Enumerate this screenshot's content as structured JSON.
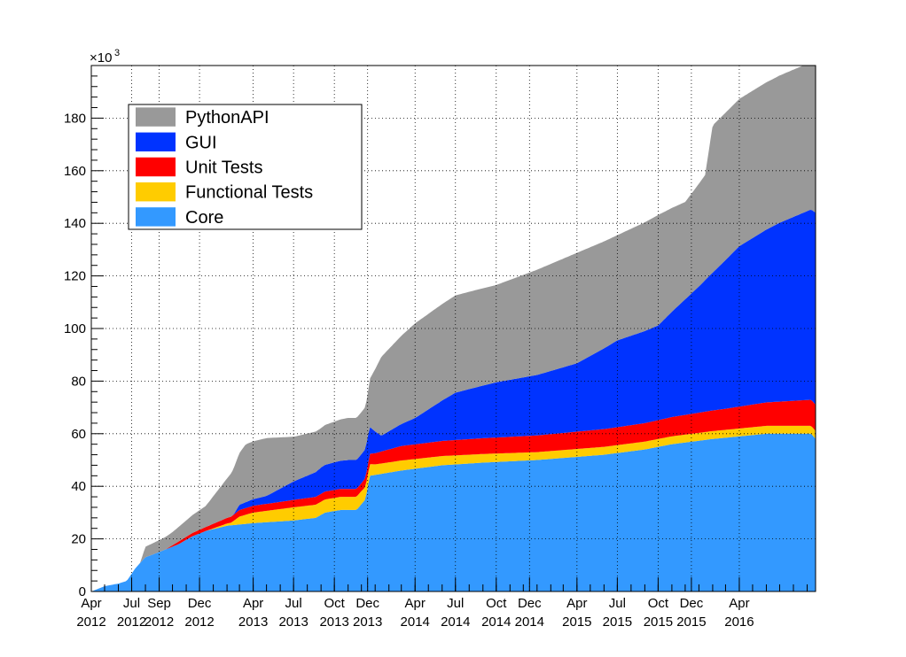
{
  "chart_data": {
    "type": "area",
    "stacked": true,
    "x_axis": {
      "type": "date",
      "ticks": [
        {
          "date": "2012-04-01",
          "l1": "Apr",
          "l2": "2012"
        },
        {
          "date": "2012-07-01",
          "l1": "Jul",
          "l2": "2012"
        },
        {
          "date": "2012-09-01",
          "l1": "Sep",
          "l2": "2012"
        },
        {
          "date": "2012-12-01",
          "l1": "Dec",
          "l2": "2012"
        },
        {
          "date": "2013-04-01",
          "l1": "Apr",
          "l2": "2013"
        },
        {
          "date": "2013-07-01",
          "l1": "Jul",
          "l2": "2013"
        },
        {
          "date": "2013-10-01",
          "l1": "Oct",
          "l2": "2013"
        },
        {
          "date": "2013-12-15",
          "l1": "Dec",
          "l2": "2013"
        },
        {
          "date": "2014-04-01",
          "l1": "Apr",
          "l2": "2014"
        },
        {
          "date": "2014-07-01",
          "l1": "Jul",
          "l2": "2014"
        },
        {
          "date": "2014-10-01",
          "l1": "Oct",
          "l2": "2014"
        },
        {
          "date": "2014-12-15",
          "l1": "Dec",
          "l2": "2014"
        },
        {
          "date": "2015-04-01",
          "l1": "Apr",
          "l2": "2015"
        },
        {
          "date": "2015-07-01",
          "l1": "Jul",
          "l2": "2015"
        },
        {
          "date": "2015-10-01",
          "l1": "Oct",
          "l2": "2015"
        },
        {
          "date": "2015-12-15",
          "l1": "Dec",
          "l2": "2015"
        },
        {
          "date": "2016-04-01",
          "l1": "Apr",
          "l2": "2016"
        }
      ],
      "range": [
        "2012-04-01",
        "2016-09-20"
      ]
    },
    "y_axis": {
      "range": [
        0,
        200000
      ],
      "multiplier_label": "×10",
      "multiplier_exponent": "3",
      "ticks": [
        0,
        20,
        40,
        60,
        80,
        100,
        120,
        140,
        160,
        180
      ]
    },
    "grid": true,
    "legend_position": "top-left",
    "series": [
      {
        "name": "Core",
        "color": "#3399ff",
        "points": [
          [
            "2012-04-01",
            0
          ],
          [
            "2012-05-01",
            2000
          ],
          [
            "2012-06-01",
            3000
          ],
          [
            "2012-06-20",
            4000
          ],
          [
            "2012-07-10",
            9000
          ],
          [
            "2012-08-01",
            13000
          ],
          [
            "2012-09-01",
            15000
          ],
          [
            "2012-10-15",
            18000
          ],
          [
            "2012-11-15",
            21000
          ],
          [
            "2012-12-15",
            23000
          ],
          [
            "2013-02-01",
            25000
          ],
          [
            "2013-04-01",
            26000
          ],
          [
            "2013-07-01",
            27000
          ],
          [
            "2013-08-20",
            28000
          ],
          [
            "2013-09-10",
            30000
          ],
          [
            "2013-10-15",
            31000
          ],
          [
            "2013-11-20",
            31000
          ],
          [
            "2013-12-10",
            35000
          ],
          [
            "2013-12-20",
            44000
          ],
          [
            "2014-03-01",
            46000
          ],
          [
            "2014-06-01",
            48000
          ],
          [
            "2014-09-01",
            49000
          ],
          [
            "2015-01-01",
            50000
          ],
          [
            "2015-06-01",
            52000
          ],
          [
            "2015-09-01",
            54000
          ],
          [
            "2015-11-01",
            56000
          ],
          [
            "2016-02-01",
            58000
          ],
          [
            "2016-06-01",
            60000
          ],
          [
            "2016-09-10",
            60000
          ],
          [
            "2016-09-20",
            58000
          ]
        ]
      },
      {
        "name": "Functional Tests",
        "color": "#ffcc00",
        "points": [
          [
            "2012-04-01",
            0
          ],
          [
            "2012-12-15",
            0
          ],
          [
            "2013-02-10",
            1000
          ],
          [
            "2013-03-01",
            3000
          ],
          [
            "2013-04-01",
            4000
          ],
          [
            "2013-07-01",
            5000
          ],
          [
            "2013-09-01",
            5000
          ],
          [
            "2013-12-01",
            5000
          ],
          [
            "2014-01-01",
            4000
          ],
          [
            "2014-06-01",
            3500
          ],
          [
            "2015-01-01",
            3000
          ],
          [
            "2016-09-20",
            3000
          ]
        ]
      },
      {
        "name": "Unit Tests",
        "color": "#ff0000",
        "points": [
          [
            "2012-04-01",
            0
          ],
          [
            "2012-09-15",
            0
          ],
          [
            "2012-10-15",
            1000
          ],
          [
            "2012-12-15",
            1500
          ],
          [
            "2013-03-01",
            2500
          ],
          [
            "2013-09-01",
            3000
          ],
          [
            "2013-12-01",
            3000
          ],
          [
            "2013-12-20",
            4000
          ],
          [
            "2014-03-01",
            5500
          ],
          [
            "2014-09-01",
            6000
          ],
          [
            "2015-03-01",
            6500
          ],
          [
            "2015-09-01",
            7000
          ],
          [
            "2016-03-01",
            8000
          ],
          [
            "2016-09-20",
            10000
          ]
        ]
      },
      {
        "name": "GUI",
        "color": "#0033ff",
        "points": [
          [
            "2012-04-01",
            0
          ],
          [
            "2013-02-15",
            0
          ],
          [
            "2013-03-01",
            2000
          ],
          [
            "2013-05-01",
            3000
          ],
          [
            "2013-07-01",
            7000
          ],
          [
            "2013-09-01",
            10000
          ],
          [
            "2013-11-01",
            11000
          ],
          [
            "2013-12-15",
            11000
          ],
          [
            "2014-01-15",
            6000
          ],
          [
            "2014-04-01",
            10000
          ],
          [
            "2014-07-01",
            18000
          ],
          [
            "2014-10-01",
            21000
          ],
          [
            "2015-01-01",
            23000
          ],
          [
            "2015-04-01",
            26000
          ],
          [
            "2015-07-01",
            33000
          ],
          [
            "2015-10-01",
            36000
          ],
          [
            "2016-01-01",
            48000
          ],
          [
            "2016-04-01",
            61000
          ],
          [
            "2016-07-01",
            68000
          ],
          [
            "2016-09-20",
            73000
          ]
        ]
      },
      {
        "name": "PythonAPI",
        "color": "#999999",
        "points": [
          [
            "2012-04-01",
            0
          ],
          [
            "2012-07-20",
            0
          ],
          [
            "2012-08-01",
            4000
          ],
          [
            "2012-10-01",
            5000
          ],
          [
            "2012-12-15",
            8000
          ],
          [
            "2013-02-01",
            15000
          ],
          [
            "2013-03-15",
            22000
          ],
          [
            "2013-05-01",
            22000
          ],
          [
            "2013-07-01",
            17000
          ],
          [
            "2013-09-01",
            15000
          ],
          [
            "2013-11-01",
            16000
          ],
          [
            "2013-12-15",
            16000
          ],
          [
            "2014-01-15",
            30000
          ],
          [
            "2014-04-01",
            36000
          ],
          [
            "2014-07-01",
            37000
          ],
          [
            "2014-10-01",
            37000
          ],
          [
            "2015-01-01",
            40000
          ],
          [
            "2015-04-01",
            42000
          ],
          [
            "2015-07-01",
            40000
          ],
          [
            "2015-10-01",
            42000
          ],
          [
            "2015-12-01",
            37000
          ],
          [
            "2016-01-15",
            40000
          ],
          [
            "2016-02-01",
            56000
          ],
          [
            "2016-09-20",
            56000
          ]
        ]
      }
    ],
    "legend_order": [
      "PythonAPI",
      "GUI",
      "Unit Tests",
      "Functional Tests",
      "Core"
    ]
  }
}
